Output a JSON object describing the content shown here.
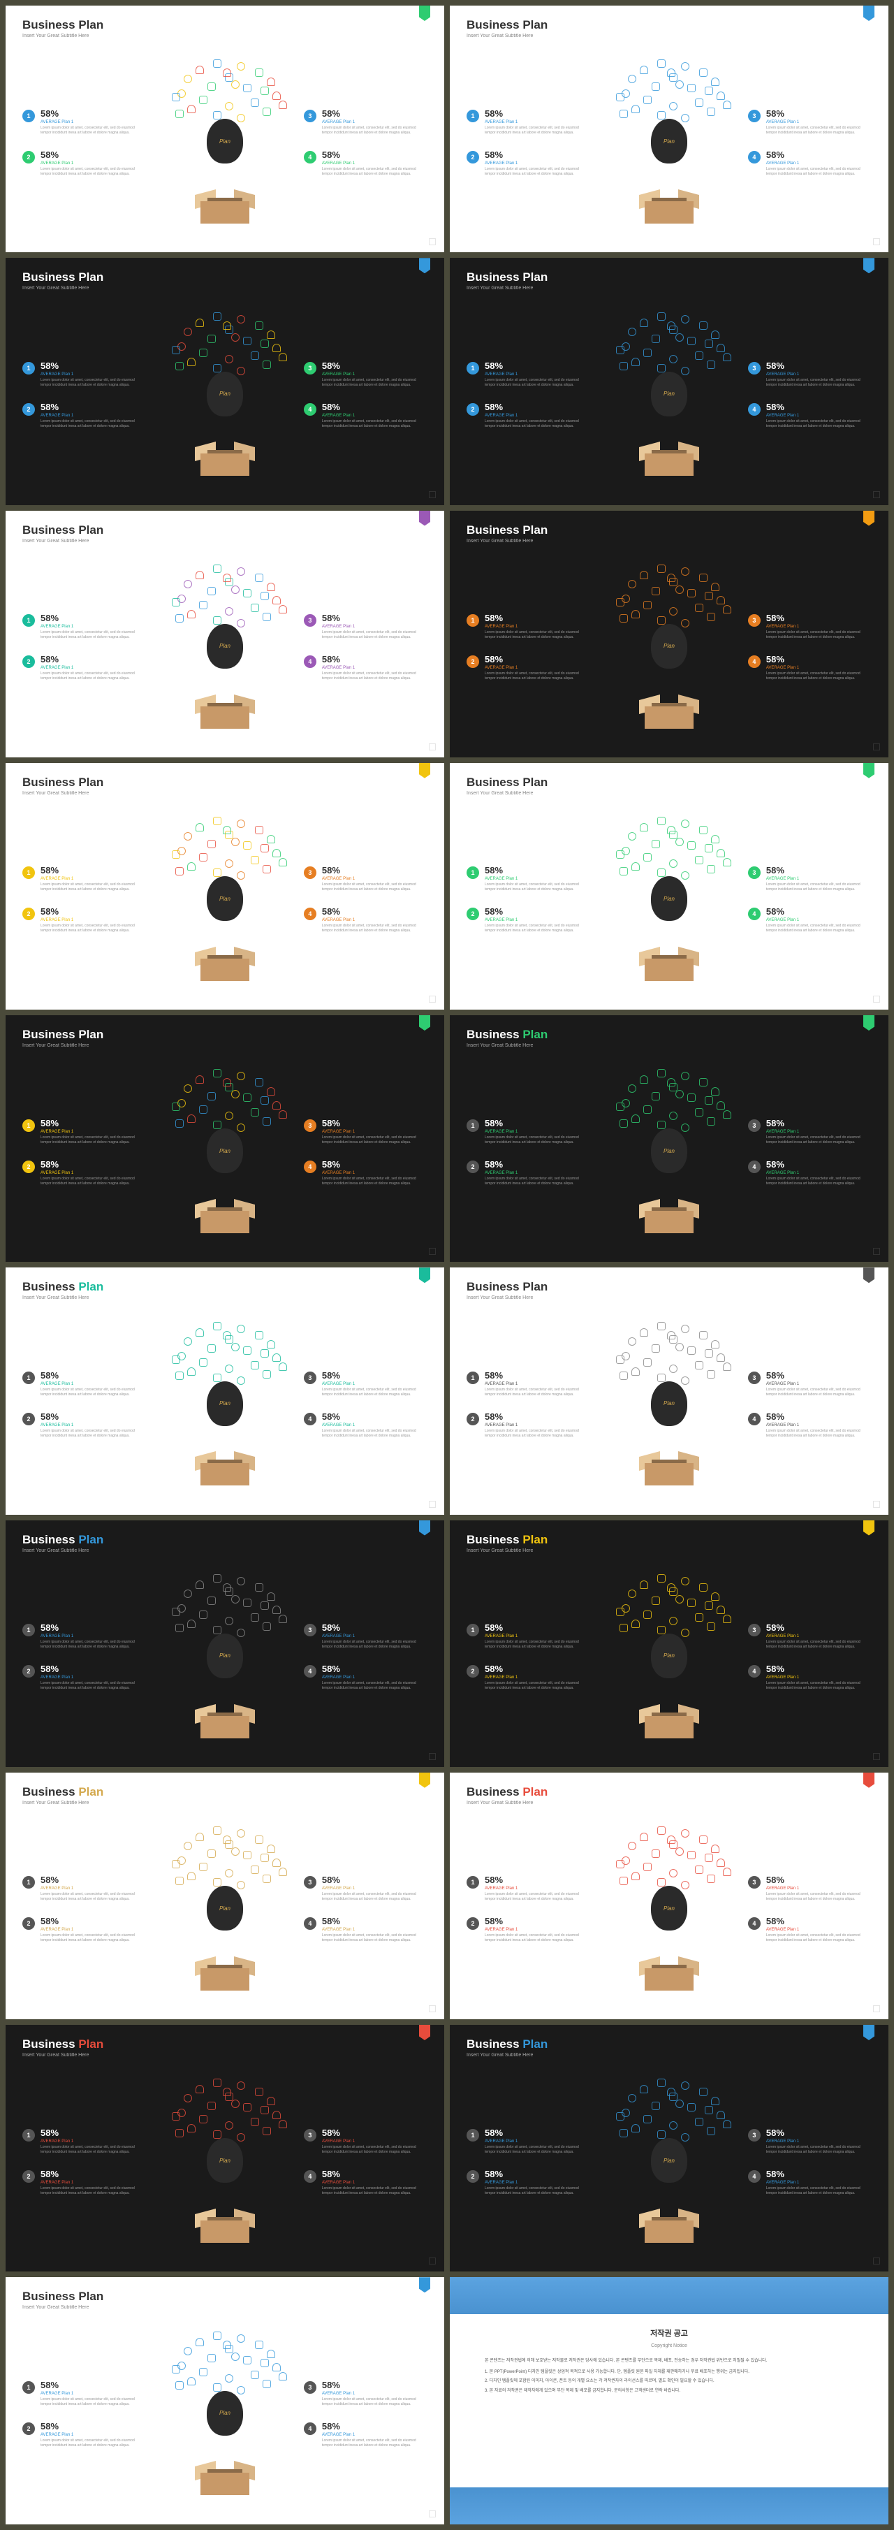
{
  "common": {
    "title_main": "Business",
    "title_accent": "Plan",
    "subtitle": "Insert Your Great Subtitle Here",
    "pct": "58%",
    "avg": "AVERAGE Plan 1",
    "desc": "Lorem ipsum dolor sit amet, consectetur elit, sed do eiusmod tempor incididunt inesa art labore et dolore magna aliqua.",
    "bulb_text": "Plan"
  },
  "slides": [
    {
      "bg": "light",
      "tab": "#2ecc71",
      "accent": "#333",
      "badges": [
        "#3498db",
        "#2ecc71",
        "#3498db",
        "#2ecc71"
      ],
      "avg_colors": [
        "#3498db",
        "#2ecc71",
        "#3498db",
        "#2ecc71"
      ],
      "icons": [
        "#3498db",
        "#f1c40f",
        "#e74c3c",
        "#2ecc71"
      ]
    },
    {
      "bg": "light",
      "tab": "#3498db",
      "accent": "#333",
      "badges": [
        "#3498db",
        "#3498db",
        "#3498db",
        "#3498db"
      ],
      "avg_colors": [
        "#3498db",
        "#3498db",
        "#3498db",
        "#3498db"
      ],
      "icons": [
        "#3498db",
        "#3498db",
        "#3498db",
        "#3498db"
      ]
    },
    {
      "bg": "dark",
      "tab": "#3498db",
      "accent": "#fff",
      "badges": [
        "#3498db",
        "#3498db",
        "#2ecc71",
        "#2ecc71"
      ],
      "avg_colors": [
        "#3498db",
        "#3498db",
        "#2ecc71",
        "#2ecc71"
      ],
      "icons": [
        "#3498db",
        "#e74c3c",
        "#f1c40f",
        "#2ecc71"
      ]
    },
    {
      "bg": "dark",
      "tab": "#3498db",
      "accent": "#fff",
      "badges": [
        "#3498db",
        "#3498db",
        "#3498db",
        "#3498db"
      ],
      "avg_colors": [
        "#3498db",
        "#3498db",
        "#3498db",
        "#3498db"
      ],
      "icons": [
        "#3498db",
        "#3498db",
        "#3498db",
        "#3498db"
      ]
    },
    {
      "bg": "light",
      "tab": "#9b59b6",
      "accent": "#333",
      "badges": [
        "#1abc9c",
        "#1abc9c",
        "#9b59b6",
        "#9b59b6"
      ],
      "avg_colors": [
        "#1abc9c",
        "#1abc9c",
        "#9b59b6",
        "#9b59b6"
      ],
      "icons": [
        "#1abc9c",
        "#9b59b6",
        "#e74c3c",
        "#3498db"
      ]
    },
    {
      "bg": "dark",
      "tab": "#f39c12",
      "accent": "#fff",
      "badges": [
        "#e67e22",
        "#e67e22",
        "#e67e22",
        "#e67e22"
      ],
      "avg_colors": [
        "#e67e22",
        "#e67e22",
        "#e67e22",
        "#e67e22"
      ],
      "icons": [
        "#e67e22",
        "#e67e22",
        "#e67e22",
        "#e67e22"
      ]
    },
    {
      "bg": "light",
      "tab": "#f1c40f",
      "accent": "#333",
      "badges": [
        "#f1c40f",
        "#f1c40f",
        "#e67e22",
        "#e67e22"
      ],
      "avg_colors": [
        "#f1c40f",
        "#f1c40f",
        "#e67e22",
        "#e67e22"
      ],
      "icons": [
        "#f1c40f",
        "#e67e22",
        "#2ecc71",
        "#e74c3c"
      ]
    },
    {
      "bg": "light",
      "tab": "#2ecc71",
      "accent": "#333",
      "badges": [
        "#2ecc71",
        "#2ecc71",
        "#2ecc71",
        "#2ecc71"
      ],
      "avg_colors": [
        "#2ecc71",
        "#2ecc71",
        "#2ecc71",
        "#2ecc71"
      ],
      "icons": [
        "#2ecc71",
        "#2ecc71",
        "#2ecc71",
        "#2ecc71"
      ]
    },
    {
      "bg": "dark",
      "tab": "#2ecc71",
      "accent": "#fff",
      "badges": [
        "#f1c40f",
        "#f1c40f",
        "#e67e22",
        "#e67e22"
      ],
      "avg_colors": [
        "#f1c40f",
        "#f1c40f",
        "#e67e22",
        "#e67e22"
      ],
      "icons": [
        "#2ecc71",
        "#f1c40f",
        "#e74c3c",
        "#3498db"
      ]
    },
    {
      "bg": "dark",
      "tab": "#2ecc71",
      "accent": "#2ecc71",
      "badges": [
        "#555",
        "#555",
        "#555",
        "#555"
      ],
      "avg_colors": [
        "#2ecc71",
        "#2ecc71",
        "#2ecc71",
        "#2ecc71"
      ],
      "icons": [
        "#2ecc71",
        "#2ecc71",
        "#2ecc71",
        "#2ecc71"
      ]
    },
    {
      "bg": "light",
      "tab": "#1abc9c",
      "accent": "#1abc9c",
      "badges": [
        "#555",
        "#555",
        "#555",
        "#555"
      ],
      "avg_colors": [
        "#1abc9c",
        "#1abc9c",
        "#1abc9c",
        "#1abc9c"
      ],
      "icons": [
        "#1abc9c",
        "#1abc9c",
        "#1abc9c",
        "#1abc9c"
      ]
    },
    {
      "bg": "light",
      "tab": "#555",
      "accent": "#333",
      "badges": [
        "#555",
        "#555",
        "#555",
        "#555"
      ],
      "avg_colors": [
        "#555",
        "#555",
        "#555",
        "#555"
      ],
      "icons": [
        "#888",
        "#888",
        "#888",
        "#888"
      ]
    },
    {
      "bg": "dark",
      "tab": "#3498db",
      "accent": "#3498db",
      "badges": [
        "#555",
        "#555",
        "#555",
        "#555"
      ],
      "avg_colors": [
        "#3498db",
        "#3498db",
        "#3498db",
        "#3498db"
      ],
      "icons": [
        "#888",
        "#888",
        "#888",
        "#888"
      ]
    },
    {
      "bg": "dark",
      "tab": "#f1c40f",
      "accent": "#f1c40f",
      "badges": [
        "#555",
        "#555",
        "#555",
        "#555"
      ],
      "avg_colors": [
        "#f1c40f",
        "#f1c40f",
        "#f1c40f",
        "#f1c40f"
      ],
      "icons": [
        "#f1c40f",
        "#f1c40f",
        "#f1c40f",
        "#f1c40f"
      ]
    },
    {
      "bg": "light",
      "tab": "#f1c40f",
      "accent": "#d4a94e",
      "badges": [
        "#555",
        "#555",
        "#555",
        "#555"
      ],
      "avg_colors": [
        "#d4a94e",
        "#d4a94e",
        "#d4a94e",
        "#d4a94e"
      ],
      "icons": [
        "#d4a94e",
        "#d4a94e",
        "#d4a94e",
        "#d4a94e"
      ]
    },
    {
      "bg": "light",
      "tab": "#e74c3c",
      "accent": "#e74c3c",
      "badges": [
        "#555",
        "#555",
        "#555",
        "#555"
      ],
      "avg_colors": [
        "#e74c3c",
        "#e74c3c",
        "#e74c3c",
        "#e74c3c"
      ],
      "icons": [
        "#e74c3c",
        "#e74c3c",
        "#e74c3c",
        "#e74c3c"
      ]
    },
    {
      "bg": "dark",
      "tab": "#e74c3c",
      "accent": "#e74c3c",
      "badges": [
        "#555",
        "#555",
        "#555",
        "#555"
      ],
      "avg_colors": [
        "#e74c3c",
        "#e74c3c",
        "#e74c3c",
        "#e74c3c"
      ],
      "icons": [
        "#e74c3c",
        "#e74c3c",
        "#e74c3c",
        "#e74c3c"
      ]
    },
    {
      "bg": "dark",
      "tab": "#3498db",
      "accent": "#3498db",
      "badges": [
        "#555",
        "#555",
        "#555",
        "#555"
      ],
      "avg_colors": [
        "#3498db",
        "#3498db",
        "#3498db",
        "#3498db"
      ],
      "icons": [
        "#3498db",
        "#3498db",
        "#3498db",
        "#3498db"
      ]
    },
    {
      "bg": "light",
      "tab": "#3498db",
      "accent": "#333",
      "badges": [
        "#555",
        "#555",
        "#555",
        "#555"
      ],
      "avg_colors": [
        "#3498db",
        "#3498db",
        "#3498db",
        "#3498db"
      ],
      "icons": [
        "#3498db",
        "#3498db",
        "#3498db",
        "#3498db"
      ]
    }
  ],
  "copyright": {
    "title": "저작권 공고",
    "subtitle": "Copyright Notice",
    "body1": "본 콘텐츠는 저작권법에 의해 보호받는 저작물로 저작권은 당사에 있습니다. 본 콘텐츠를 무단으로 복제, 배포, 전송하는 경우 저작권법 위반으로 처벌될 수 있습니다.",
    "body2": "1. 본 PPT(PowerPoint) 디자인 템플릿은 상업적 목적으로 사용 가능합니다. 단, 템플릿 원본 파일 자체를 재판매하거나 무료 배포하는 행위는 금지됩니다.",
    "body3": "2. 디자인 템플릿에 포함된 이미지, 아이콘, 폰트 등의 개별 요소는 각 저작권자의 라이선스를 따르며, 별도 확인이 필요할 수 있습니다.",
    "body4": "3. 본 자료의 저작권은 제작자에게 있으며 무단 복제 및 배포를 금지합니다. 문의사항은 고객센터로 연락 바랍니다."
  },
  "icon_positions": [
    {
      "t": 5,
      "l": 40
    },
    {
      "t": 8,
      "l": 60
    },
    {
      "t": 12,
      "l": 25
    },
    {
      "t": 15,
      "l": 75
    },
    {
      "t": 20,
      "l": 50
    },
    {
      "t": 22,
      "l": 15
    },
    {
      "t": 25,
      "l": 85
    },
    {
      "t": 30,
      "l": 35
    },
    {
      "t": 32,
      "l": 65
    },
    {
      "t": 38,
      "l": 10
    },
    {
      "t": 40,
      "l": 90
    },
    {
      "t": 45,
      "l": 28
    },
    {
      "t": 48,
      "l": 72
    },
    {
      "t": 52,
      "l": 50
    },
    {
      "t": 55,
      "l": 18
    },
    {
      "t": 58,
      "l": 82
    },
    {
      "t": 62,
      "l": 40
    },
    {
      "t": 65,
      "l": 60
    },
    {
      "t": 15,
      "l": 48
    },
    {
      "t": 35,
      "l": 80
    },
    {
      "t": 42,
      "l": 5
    },
    {
      "t": 28,
      "l": 55
    },
    {
      "t": 50,
      "l": 95
    },
    {
      "t": 60,
      "l": 8
    }
  ]
}
